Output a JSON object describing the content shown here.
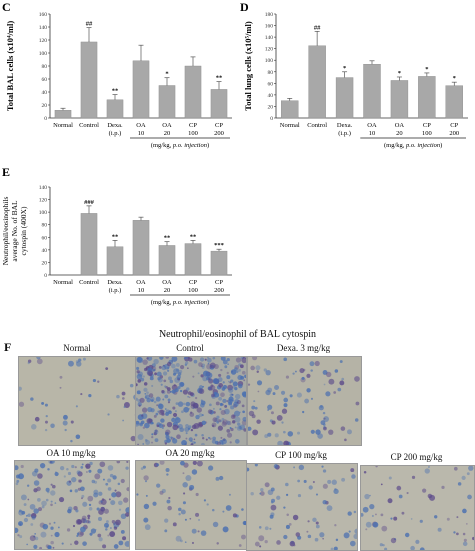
{
  "chart_data": [
    {
      "type": "bar",
      "letter": "C",
      "ylabel": "Total BAL cells (x10⁴/ml)",
      "ylim": [
        0,
        160
      ],
      "yticks": [
        0,
        20,
        40,
        60,
        80,
        100,
        120,
        140,
        160
      ],
      "categories": [
        {
          "l1": "Normal",
          "l2": ""
        },
        {
          "l1": "Control",
          "l2": ""
        },
        {
          "l1": "Dexa.",
          "l2": "(i.p.)"
        },
        {
          "l1": "OA",
          "l2": "10"
        },
        {
          "l1": "OA",
          "l2": "20"
        },
        {
          "l1": "CP",
          "l2": "100"
        },
        {
          "l1": "CP",
          "l2": "200"
        }
      ],
      "values": [
        12,
        117,
        28,
        88,
        50,
        80,
        44
      ],
      "errors": [
        3,
        22,
        8,
        24,
        12,
        14,
        12
      ],
      "annotations": [
        "",
        "##",
        "**",
        "",
        "*",
        "",
        "**"
      ],
      "group_caption": "(mg/kg, p.o. injection)"
    },
    {
      "type": "bar",
      "letter": "D",
      "ylabel": "Total lung cells (x10⁵/ml)",
      "ylim": [
        0,
        180
      ],
      "yticks": [
        0,
        20,
        40,
        60,
        80,
        100,
        120,
        140,
        160,
        180
      ],
      "categories": [
        {
          "l1": "Normal",
          "l2": ""
        },
        {
          "l1": "Control",
          "l2": ""
        },
        {
          "l1": "Dexa.",
          "l2": "(i.p.)"
        },
        {
          "l1": "OA",
          "l2": "10"
        },
        {
          "l1": "OA",
          "l2": "20"
        },
        {
          "l1": "CP",
          "l2": "100"
        },
        {
          "l1": "CP",
          "l2": "200"
        }
      ],
      "values": [
        30,
        125,
        70,
        93,
        65,
        72,
        56
      ],
      "errors": [
        4,
        25,
        10,
        6,
        6,
        6,
        6
      ],
      "annotations": [
        "",
        "##",
        "*",
        "",
        "*",
        "*",
        "*"
      ],
      "group_caption": "(mg/kg, p.o. injection)"
    },
    {
      "type": "bar",
      "letter": "E",
      "ylabel_lines": [
        "Neutrophil/eosinophils",
        "average No. of BAL",
        "cytospin (400X)"
      ],
      "ylim": [
        0,
        140
      ],
      "yticks": [
        0,
        20,
        40,
        60,
        80,
        100,
        120,
        140
      ],
      "categories": [
        {
          "l1": "Normal",
          "l2": ""
        },
        {
          "l1": "Control",
          "l2": ""
        },
        {
          "l1": "Dexa.",
          "l2": "(i.p.)"
        },
        {
          "l1": "OA",
          "l2": "10"
        },
        {
          "l1": "OA",
          "l2": "20"
        },
        {
          "l1": "CP",
          "l2": "100"
        },
        {
          "l1": "CP",
          "l2": "200"
        }
      ],
      "values": [
        0,
        98,
        45,
        87,
        47,
        50,
        38
      ],
      "errors": [
        0,
        12,
        10,
        5,
        6,
        5,
        3
      ],
      "annotations": [
        "",
        "###",
        "**",
        "",
        "**",
        "**",
        "***"
      ],
      "group_caption": "(mg/kg, p.o. injection)"
    }
  ],
  "panel_f": {
    "letter": "F",
    "title": "Neutrophil/eosinophil of BAL cytospin",
    "images": [
      {
        "label": "Normal",
        "density": 45,
        "bg": "#b8b6a8"
      },
      {
        "label": "Control",
        "density": 420,
        "bg": "#a7a9a4"
      },
      {
        "label": "Dexa. 3 mg/kg",
        "density": 90,
        "bg": "#b5b3a6"
      },
      {
        "label": "OA 10 mg/kg",
        "density": 200,
        "bg": "#b4b4aa"
      },
      {
        "label": "OA 20 mg/kg",
        "density": 70,
        "bg": "#b7b5a8"
      },
      {
        "label": "CP 100 mg/kg",
        "density": 80,
        "bg": "#b9b7ab"
      },
      {
        "label": "CP 200 mg/kg",
        "density": 60,
        "bg": "#bab8ac"
      }
    ]
  },
  "colors": {
    "bar": "#a8a8a8",
    "axis": "#333333",
    "stain_blue": "#4a6fb0",
    "stain_purple": "#5b4a8a"
  }
}
